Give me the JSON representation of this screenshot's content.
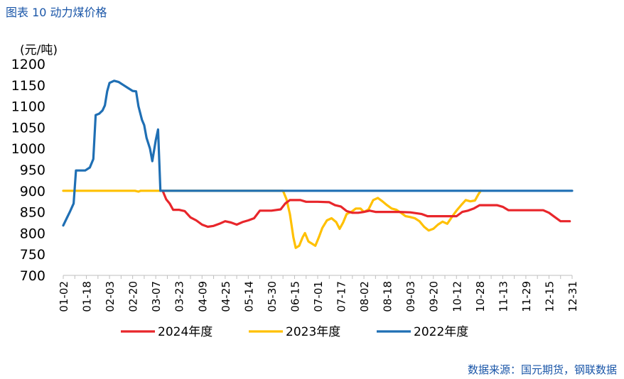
{
  "figure_label": "图表 10  动力煤价格",
  "source": "数据来源：国元期货，钢联数据",
  "colors": {
    "s2024": "#e8262b",
    "s2023": "#ffc000",
    "s2022": "#1f6fb4",
    "axis": "#bfbfbf"
  },
  "chart_data": {
    "type": "line",
    "title": "动力煤价格",
    "ylabel": "(元/吨)",
    "ylim": [
      700,
      1200
    ],
    "yticks": [
      700,
      750,
      800,
      850,
      900,
      950,
      1000,
      1050,
      1100,
      1150,
      1200
    ],
    "xticks": [
      "01-02",
      "01-18",
      "02-03",
      "02-20",
      "03-07",
      "03-23",
      "04-09",
      "04-25",
      "05-14",
      "05-30",
      "06-15",
      "07-01",
      "07-17",
      "08-02",
      "08-18",
      "09-03",
      "09-20",
      "10-12",
      "10-28",
      "11-13",
      "11-29",
      "12-15",
      "12-31"
    ],
    "xlim": [
      0,
      44
    ],
    "legend_position": "bottom",
    "series": [
      {
        "name": "2024年度",
        "color_key": "s2024",
        "points": [
          [
            8.6,
            900
          ],
          [
            8.9,
            880
          ],
          [
            9.2,
            870
          ],
          [
            9.5,
            855
          ],
          [
            10.0,
            855
          ],
          [
            10.5,
            852
          ],
          [
            11.0,
            837
          ],
          [
            11.5,
            830
          ],
          [
            12.0,
            820
          ],
          [
            12.5,
            815
          ],
          [
            13.0,
            817
          ],
          [
            13.5,
            822
          ],
          [
            14.0,
            828
          ],
          [
            14.5,
            825
          ],
          [
            15.0,
            820
          ],
          [
            15.5,
            826
          ],
          [
            16.0,
            830
          ],
          [
            16.5,
            835
          ],
          [
            17.0,
            853
          ],
          [
            18.0,
            853
          ],
          [
            18.8,
            856
          ],
          [
            19.2,
            870
          ],
          [
            19.6,
            878
          ],
          [
            20.5,
            878
          ],
          [
            21.0,
            874
          ],
          [
            22.0,
            874
          ],
          [
            23.0,
            873
          ],
          [
            23.5,
            866
          ],
          [
            24.0,
            863
          ],
          [
            24.5,
            852
          ],
          [
            25.0,
            848
          ],
          [
            25.5,
            848
          ],
          [
            26.0,
            850
          ],
          [
            26.5,
            853
          ],
          [
            27.0,
            850
          ],
          [
            28.0,
            850
          ],
          [
            29.0,
            850
          ],
          [
            30.0,
            849
          ],
          [
            31.0,
            845
          ],
          [
            31.5,
            840
          ],
          [
            33.0,
            840
          ],
          [
            34.0,
            840
          ],
          [
            34.5,
            850
          ],
          [
            35.0,
            853
          ],
          [
            35.5,
            858
          ],
          [
            36.0,
            866
          ],
          [
            37.5,
            866
          ],
          [
            38.0,
            862
          ],
          [
            38.5,
            854
          ],
          [
            40.5,
            854
          ],
          [
            41.5,
            854
          ],
          [
            42.0,
            848
          ],
          [
            42.5,
            838
          ],
          [
            43.0,
            828
          ],
          [
            43.8,
            828
          ]
        ]
      },
      {
        "name": "2023年度",
        "color_key": "s2023",
        "points": [
          [
            0,
            900
          ],
          [
            6.2,
            900
          ],
          [
            6.5,
            898
          ],
          [
            6.7,
            900
          ],
          [
            8.5,
            900
          ],
          [
            17.0,
            900
          ],
          [
            18.0,
            900
          ],
          [
            19.0,
            900
          ],
          [
            19.3,
            880
          ],
          [
            19.6,
            845
          ],
          [
            19.9,
            790
          ],
          [
            20.1,
            765
          ],
          [
            20.4,
            770
          ],
          [
            20.7,
            790
          ],
          [
            20.9,
            800
          ],
          [
            21.2,
            780
          ],
          [
            21.5,
            775
          ],
          [
            21.8,
            770
          ],
          [
            22.1,
            790
          ],
          [
            22.4,
            812
          ],
          [
            22.8,
            830
          ],
          [
            23.2,
            835
          ],
          [
            23.6,
            826
          ],
          [
            23.9,
            810
          ],
          [
            24.2,
            825
          ],
          [
            24.5,
            845
          ],
          [
            24.9,
            850
          ],
          [
            25.3,
            858
          ],
          [
            25.7,
            858
          ],
          [
            26.0,
            850
          ],
          [
            26.4,
            856
          ],
          [
            26.8,
            878
          ],
          [
            27.2,
            883
          ],
          [
            27.6,
            875
          ],
          [
            28.0,
            866
          ],
          [
            28.4,
            858
          ],
          [
            28.8,
            855
          ],
          [
            29.2,
            848
          ],
          [
            29.6,
            840
          ],
          [
            30.0,
            838
          ],
          [
            30.4,
            835
          ],
          [
            30.8,
            828
          ],
          [
            31.2,
            815
          ],
          [
            31.6,
            806
          ],
          [
            32.0,
            810
          ],
          [
            32.4,
            820
          ],
          [
            32.8,
            827
          ],
          [
            33.2,
            822
          ],
          [
            33.6,
            838
          ],
          [
            34.0,
            853
          ],
          [
            34.4,
            866
          ],
          [
            34.8,
            878
          ],
          [
            35.2,
            875
          ],
          [
            35.6,
            877
          ],
          [
            35.9,
            892
          ],
          [
            36.1,
            900
          ]
        ]
      },
      {
        "name": "2022年度",
        "color_key": "s2022",
        "points": [
          [
            0,
            818
          ],
          [
            0.3,
            835
          ],
          [
            0.6,
            852
          ],
          [
            0.9,
            870
          ],
          [
            1.1,
            948
          ],
          [
            1.4,
            948
          ],
          [
            1.9,
            948
          ],
          [
            2.3,
            955
          ],
          [
            2.6,
            975
          ],
          [
            2.8,
            1079
          ],
          [
            3.1,
            1082
          ],
          [
            3.4,
            1090
          ],
          [
            3.6,
            1102
          ],
          [
            3.8,
            1135
          ],
          [
            4.0,
            1155
          ],
          [
            4.4,
            1160
          ],
          [
            4.8,
            1157
          ],
          [
            5.2,
            1150
          ],
          [
            5.6,
            1143
          ],
          [
            6.0,
            1136
          ],
          [
            6.3,
            1135
          ],
          [
            6.5,
            1100
          ],
          [
            6.8,
            1068
          ],
          [
            7.0,
            1055
          ],
          [
            7.2,
            1025
          ],
          [
            7.5,
            1000
          ],
          [
            7.7,
            970
          ],
          [
            8.0,
            1020
          ],
          [
            8.2,
            1045
          ],
          [
            8.4,
            900
          ],
          [
            9.0,
            900
          ],
          [
            20.0,
            900
          ],
          [
            30.0,
            900
          ],
          [
            40.0,
            900
          ],
          [
            44.0,
            900
          ]
        ]
      }
    ]
  }
}
